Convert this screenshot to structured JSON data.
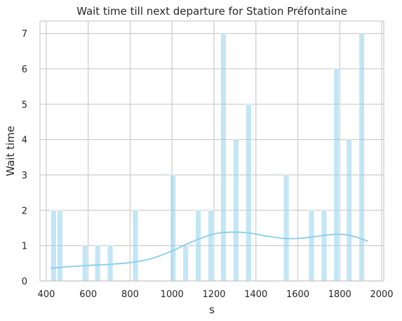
{
  "chart_data": {
    "type": "bar",
    "title": "Wait time till next departure for Station Préfontaine",
    "xlabel": "s",
    "ylabel": "Wait time",
    "xlim": [
      370,
      2010
    ],
    "ylim": [
      0,
      7.35
    ],
    "x_ticks": [
      400,
      600,
      800,
      1000,
      1200,
      1400,
      1600,
      1800,
      2000
    ],
    "y_ticks": [
      0,
      1,
      2,
      3,
      4,
      5,
      6,
      7
    ],
    "grid": true,
    "bar_color": "#87CEEB",
    "kde_color": "#87CEEB",
    "bin_start": 420,
    "bin_width": 30,
    "bars": [
      {
        "x": 435,
        "value": 2
      },
      {
        "x": 465,
        "value": 2
      },
      {
        "x": 585,
        "value": 1
      },
      {
        "x": 645,
        "value": 1
      },
      {
        "x": 705,
        "value": 1
      },
      {
        "x": 825,
        "value": 2
      },
      {
        "x": 1005,
        "value": 3
      },
      {
        "x": 1065,
        "value": 1
      },
      {
        "x": 1125,
        "value": 2
      },
      {
        "x": 1185,
        "value": 2
      },
      {
        "x": 1245,
        "value": 7
      },
      {
        "x": 1305,
        "value": 4
      },
      {
        "x": 1365,
        "value": 5
      },
      {
        "x": 1545,
        "value": 3
      },
      {
        "x": 1665,
        "value": 2
      },
      {
        "x": 1725,
        "value": 2
      },
      {
        "x": 1785,
        "value": 6
      },
      {
        "x": 1845,
        "value": 4
      },
      {
        "x": 1905,
        "value": 7
      }
    ],
    "kde": [
      {
        "x": 420,
        "y": 0.36
      },
      {
        "x": 500,
        "y": 0.4
      },
      {
        "x": 600,
        "y": 0.44
      },
      {
        "x": 700,
        "y": 0.47
      },
      {
        "x": 800,
        "y": 0.52
      },
      {
        "x": 900,
        "y": 0.63
      },
      {
        "x": 1000,
        "y": 0.85
      },
      {
        "x": 1100,
        "y": 1.12
      },
      {
        "x": 1200,
        "y": 1.33
      },
      {
        "x": 1280,
        "y": 1.38
      },
      {
        "x": 1360,
        "y": 1.36
      },
      {
        "x": 1450,
        "y": 1.27
      },
      {
        "x": 1540,
        "y": 1.2
      },
      {
        "x": 1620,
        "y": 1.21
      },
      {
        "x": 1700,
        "y": 1.27
      },
      {
        "x": 1780,
        "y": 1.32
      },
      {
        "x": 1840,
        "y": 1.3
      },
      {
        "x": 1900,
        "y": 1.2
      },
      {
        "x": 1935,
        "y": 1.12
      }
    ]
  }
}
